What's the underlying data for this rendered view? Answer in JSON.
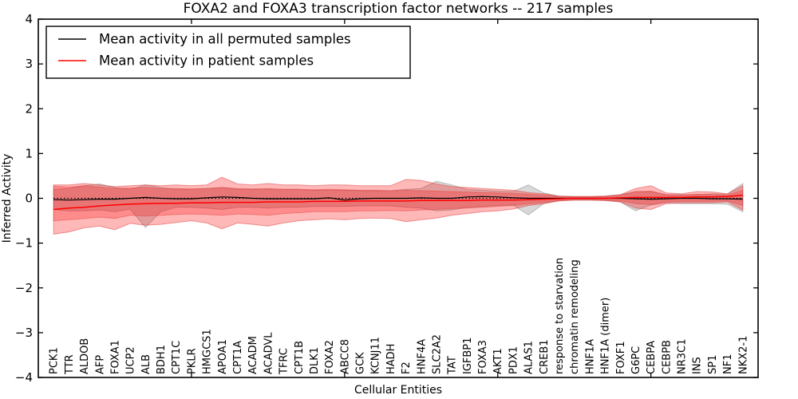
{
  "title": "FOXA2 and FOXA3 transcription factor networks -- 217 samples",
  "legend": {
    "items": [
      {
        "label": "Mean activity in all permuted samples",
        "color": "#000000"
      },
      {
        "label": "Mean activity in patient samples",
        "color": "#ff0000"
      }
    ]
  },
  "axes": {
    "xlabel": "Cellular Entities",
    "ylabel": "Inferred Activity"
  },
  "chart_data": {
    "type": "line",
    "title": "FOXA2 and FOXA3 transcription factor networks -- 217 samples",
    "xlabel": "Cellular Entities",
    "ylabel": "Inferred Activity",
    "ylim": [
      -4,
      4
    ],
    "yticks": [
      -4,
      -3,
      -2,
      -1,
      0,
      1,
      2,
      3,
      4
    ],
    "xticks_numeric": [
      10,
      20,
      30,
      40
    ],
    "grid": false,
    "legend_position": "upper left",
    "zero_reference_line": 0,
    "categories": [
      "PCK1",
      "TTR",
      "ALDOB",
      "AFP",
      "FOXA1",
      "UCP2",
      "ALB",
      "BDH1",
      "CPT1C",
      "PKLR",
      "HMGCS1",
      "APOA1",
      "CPT1A",
      "ACADM",
      "ACADVL",
      "TFRC",
      "CPT1B",
      "DLK1",
      "FOXA2",
      "ABCC8",
      "GCK",
      "KCNJ11",
      "HADH",
      "F2",
      "HNF4A",
      "SLC2A2",
      "TAT",
      "IGFBP1",
      "FOXA3",
      "AKT1",
      "PDX1",
      "ALAS1",
      "CREB1",
      "response to starvation",
      "chromatin remodeling",
      "HNF1A",
      "HNF1A (dimer)",
      "FOXF1",
      "G6PC",
      "CEBPA",
      "CEBPB",
      "NR3C1",
      "INS",
      "SP1",
      "NF1",
      "NKX2-1"
    ],
    "series": [
      {
        "name": "Mean activity in all permuted samples",
        "color": "#000000",
        "width": 1.2,
        "values": [
          -0.03,
          -0.04,
          -0.03,
          -0.02,
          -0.02,
          0.0,
          0.02,
          0.0,
          -0.01,
          -0.01,
          0.01,
          0.03,
          0.02,
          0.0,
          -0.01,
          -0.01,
          -0.01,
          -0.01,
          0.01,
          -0.04,
          -0.01,
          0.0,
          0.0,
          0.0,
          0.01,
          0.0,
          0.0,
          0.03,
          0.04,
          0.03,
          0.01,
          0.0,
          0.0,
          0.0,
          0.0,
          0.0,
          0.0,
          0.0,
          -0.01,
          -0.02,
          -0.01,
          0.0,
          0.0,
          -0.01,
          -0.01,
          -0.02
        ]
      },
      {
        "name": "Mean activity in patient samples",
        "color": "#ff0000",
        "width": 1.5,
        "values": [
          -0.25,
          -0.22,
          -0.2,
          -0.17,
          -0.15,
          -0.13,
          -0.12,
          -0.11,
          -0.11,
          -0.1,
          -0.1,
          -0.09,
          -0.09,
          -0.09,
          -0.08,
          -0.08,
          -0.08,
          -0.07,
          -0.07,
          -0.07,
          -0.06,
          -0.06,
          -0.06,
          -0.06,
          -0.05,
          -0.05,
          -0.05,
          -0.05,
          -0.04,
          -0.04,
          -0.04,
          -0.03,
          -0.02,
          -0.01,
          0.0,
          0.0,
          0.0,
          0.01,
          0.02,
          0.02,
          0.02,
          0.02,
          0.03,
          0.03,
          0.04,
          0.07
        ]
      }
    ],
    "bands": [
      {
        "name": "permuted-samples-range",
        "fill": "rgba(125,125,125,0.30)",
        "edge": "rgba(125,125,125,0.45)",
        "hi": [
          0.2,
          0.22,
          0.28,
          0.32,
          0.24,
          0.2,
          0.3,
          0.24,
          0.2,
          0.2,
          0.22,
          0.24,
          0.2,
          0.2,
          0.2,
          0.2,
          0.2,
          0.18,
          0.18,
          0.18,
          0.17,
          0.17,
          0.17,
          0.2,
          0.22,
          0.38,
          0.3,
          0.2,
          0.18,
          0.16,
          0.15,
          0.3,
          0.12,
          0.05,
          0.04,
          0.04,
          0.05,
          0.08,
          0.15,
          0.15,
          0.08,
          0.08,
          0.08,
          0.1,
          0.1,
          0.33
        ],
        "lo": [
          -0.25,
          -0.28,
          -0.28,
          -0.26,
          -0.3,
          -0.24,
          -0.65,
          -0.3,
          -0.2,
          -0.2,
          -0.22,
          -0.25,
          -0.2,
          -0.2,
          -0.22,
          -0.2,
          -0.2,
          -0.18,
          -0.18,
          -0.18,
          -0.17,
          -0.17,
          -0.17,
          -0.2,
          -0.22,
          -0.28,
          -0.26,
          -0.2,
          -0.18,
          -0.16,
          -0.15,
          -0.37,
          -0.12,
          -0.05,
          -0.04,
          -0.04,
          -0.05,
          -0.08,
          -0.28,
          -0.15,
          -0.1,
          -0.12,
          -0.12,
          -0.12,
          -0.13,
          -0.3
        ]
      },
      {
        "name": "patient-samples-outer-range",
        "fill": "rgba(255,0,0,0.28)",
        "edge": "rgba(225,70,70,0.55)",
        "hi": [
          0.3,
          0.3,
          0.33,
          0.3,
          0.26,
          0.28,
          0.3,
          0.28,
          0.3,
          0.28,
          0.3,
          0.47,
          0.32,
          0.3,
          0.33,
          0.3,
          0.3,
          0.28,
          0.3,
          0.3,
          0.28,
          0.28,
          0.28,
          0.42,
          0.4,
          0.32,
          0.26,
          0.24,
          0.22,
          0.2,
          0.18,
          0.13,
          0.1,
          0.05,
          0.04,
          0.04,
          0.05,
          0.08,
          0.22,
          0.28,
          0.12,
          0.1,
          0.15,
          0.14,
          0.1,
          0.28
        ],
        "lo": [
          -0.8,
          -0.75,
          -0.66,
          -0.62,
          -0.7,
          -0.56,
          -0.6,
          -0.58,
          -0.54,
          -0.5,
          -0.55,
          -0.68,
          -0.55,
          -0.58,
          -0.62,
          -0.55,
          -0.5,
          -0.48,
          -0.46,
          -0.48,
          -0.45,
          -0.44,
          -0.45,
          -0.52,
          -0.48,
          -0.44,
          -0.38,
          -0.34,
          -0.3,
          -0.28,
          -0.24,
          -0.16,
          -0.12,
          -0.06,
          -0.04,
          -0.04,
          -0.05,
          -0.08,
          -0.22,
          -0.25,
          -0.12,
          -0.1,
          -0.1,
          -0.1,
          -0.08,
          -0.26
        ]
      },
      {
        "name": "patient-samples-inner-range",
        "fill": "rgba(255,0,0,0.24)",
        "edge": "rgba(225,70,70,0.50)",
        "hi": [
          0.27,
          0.25,
          0.28,
          0.25,
          0.22,
          0.23,
          0.24,
          0.22,
          0.22,
          0.21,
          0.22,
          0.24,
          0.22,
          0.21,
          0.22,
          0.2,
          0.2,
          0.19,
          0.2,
          0.19,
          0.18,
          0.18,
          0.17,
          0.18,
          0.17,
          0.16,
          0.15,
          0.14,
          0.13,
          0.12,
          0.11,
          0.09,
          0.07,
          0.04,
          0.03,
          0.03,
          0.04,
          0.06,
          0.15,
          0.16,
          0.08,
          0.07,
          0.09,
          0.08,
          0.07,
          0.18
        ],
        "lo": [
          -0.5,
          -0.48,
          -0.45,
          -0.42,
          -0.45,
          -0.38,
          -0.4,
          -0.38,
          -0.36,
          -0.35,
          -0.36,
          -0.38,
          -0.35,
          -0.36,
          -0.38,
          -0.34,
          -0.32,
          -0.3,
          -0.3,
          -0.3,
          -0.28,
          -0.28,
          -0.27,
          -0.28,
          -0.26,
          -0.25,
          -0.23,
          -0.22,
          -0.2,
          -0.18,
          -0.16,
          -0.12,
          -0.09,
          -0.05,
          -0.03,
          -0.03,
          -0.04,
          -0.06,
          -0.12,
          -0.14,
          -0.08,
          -0.07,
          -0.07,
          -0.07,
          -0.06,
          -0.16
        ]
      }
    ]
  }
}
